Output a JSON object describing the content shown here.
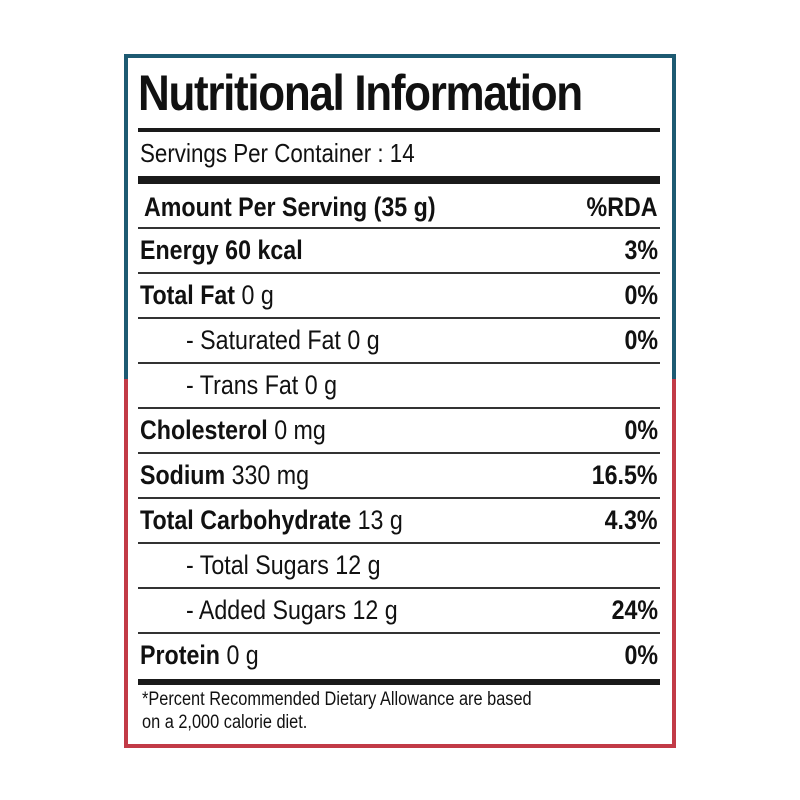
{
  "label": {
    "title": "Nutritional Information",
    "servings": "Servings Per Container : 14",
    "header": {
      "label": "Amount Per Serving (35 g)",
      "pct": "%RDA"
    },
    "rows": [
      {
        "name": "Energy 60 kcal",
        "amount": "",
        "pct": "3%"
      },
      {
        "name": "Total Fat",
        "amount": " 0 g",
        "pct": "0%"
      },
      {
        "name": "",
        "amount": "- Saturated Fat 0 g",
        "pct": "0%"
      },
      {
        "name": "",
        "amount": "- Trans Fat 0 g",
        "pct": ""
      },
      {
        "name": "Cholesterol",
        "amount": " 0 mg",
        "pct": "0%"
      },
      {
        "name": "Sodium",
        "amount": " 330 mg",
        "pct": "16.5%"
      },
      {
        "name": "Total Carbohydrate",
        "amount": " 13 g",
        "pct": "4.3%"
      },
      {
        "name": "",
        "amount": "- Total Sugars 12 g",
        "pct": ""
      },
      {
        "name": "",
        "amount": "- Added Sugars 12 g",
        "pct": "24%"
      },
      {
        "name": "Protein",
        "amount": " 0 g",
        "pct": "0%"
      }
    ],
    "footnote_line1": "*Percent Recommended Dietary Allowance are based",
    "footnote_line2": "on a 2,000 calorie diet."
  },
  "colors": {
    "top_border": "#1d5a72",
    "bottom_border": "#c23a47"
  }
}
